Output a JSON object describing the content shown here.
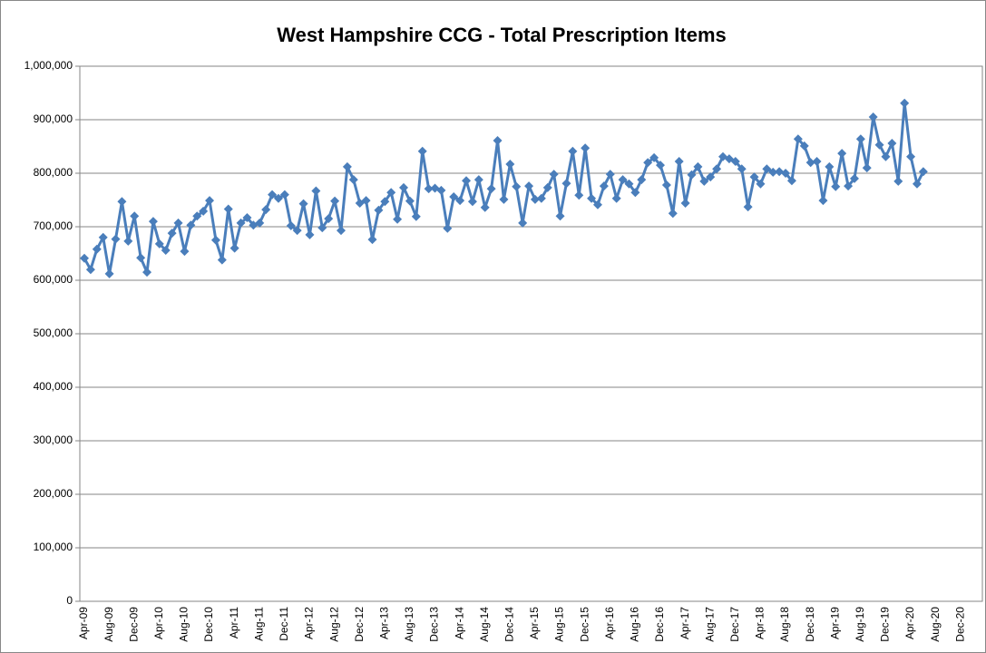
{
  "chart_data": {
    "type": "line",
    "title": "West Hampshire CCG - Total Prescription Items",
    "categories": [
      "Apr-09",
      null,
      null,
      null,
      "Aug-09",
      null,
      null,
      null,
      "Dec-09",
      null,
      null,
      null,
      "Apr-10",
      null,
      null,
      null,
      "Aug-10",
      null,
      null,
      null,
      "Dec-10",
      null,
      null,
      null,
      "Apr-11",
      null,
      null,
      null,
      "Aug-11",
      null,
      null,
      null,
      "Dec-11",
      null,
      null,
      null,
      "Apr-12",
      null,
      null,
      null,
      "Aug-12",
      null,
      null,
      null,
      "Dec-12",
      null,
      null,
      null,
      "Apr-13",
      null,
      null,
      null,
      "Aug-13",
      null,
      null,
      null,
      "Dec-13",
      null,
      null,
      null,
      "Apr-14",
      null,
      null,
      null,
      "Aug-14",
      null,
      null,
      null,
      "Dec-14",
      null,
      null,
      null,
      "Apr-15",
      null,
      null,
      null,
      "Aug-15",
      null,
      null,
      null,
      "Dec-15",
      null,
      null,
      null,
      "Apr-16",
      null,
      null,
      null,
      "Aug-16",
      null,
      null,
      null,
      "Dec-16",
      null,
      null,
      null,
      "Apr-17",
      null,
      null,
      null,
      "Aug-17",
      null,
      null,
      null,
      "Dec-17",
      null,
      null,
      null,
      "Apr-18",
      null,
      null,
      null,
      "Aug-18",
      null,
      null,
      null,
      "Dec-18",
      null,
      null,
      null,
      "Apr-19",
      null,
      null,
      null,
      "Aug-19",
      null,
      null,
      null,
      "Dec-19",
      null,
      null,
      null,
      "Apr-20",
      null,
      null,
      null,
      "Aug-20",
      null,
      null,
      null,
      "Dec-20",
      null,
      null,
      null
    ],
    "series": [
      {
        "name": "Total Prescription Items",
        "color": "#4a7ebb",
        "values": [
          641000,
          620000,
          658000,
          680000,
          612000,
          677000,
          747000,
          673000,
          720000,
          642000,
          615000,
          710000,
          668000,
          656000,
          688000,
          707000,
          654000,
          703000,
          720000,
          729000,
          749000,
          675000,
          638000,
          733000,
          660000,
          707000,
          717000,
          703000,
          707000,
          732000,
          760000,
          753000,
          760000,
          702000,
          693000,
          743000,
          685000,
          767000,
          698000,
          715000,
          748000,
          693000,
          812000,
          788000,
          744000,
          749000,
          676000,
          731000,
          747000,
          764000,
          714000,
          773000,
          748000,
          719000,
          841000,
          771000,
          772000,
          768000,
          697000,
          756000,
          749000,
          786000,
          747000,
          788000,
          736000,
          771000,
          861000,
          751000,
          817000,
          775000,
          707000,
          776000,
          751000,
          753000,
          773000,
          798000,
          720000,
          781000,
          841000,
          759000,
          847000,
          753000,
          741000,
          776000,
          798000,
          753000,
          788000,
          780000,
          764000,
          788000,
          820000,
          829000,
          815000,
          778000,
          725000,
          822000,
          744000,
          797000,
          812000,
          785000,
          793000,
          808000,
          831000,
          827000,
          822000,
          808000,
          737000,
          793000,
          780000,
          808000,
          802000,
          803000,
          800000,
          786000,
          864000,
          851000,
          820000,
          822000,
          749000,
          812000,
          775000,
          837000,
          776000,
          790000,
          864000,
          810000,
          905000,
          853000,
          831000,
          856000,
          785000,
          931000,
          831000,
          780000,
          803000,
          null,
          null,
          null,
          null,
          null,
          null,
          null,
          null,
          null
        ]
      }
    ],
    "ylim": [
      0,
      1000000
    ],
    "yticks": [
      0,
      {
        "value": 100000,
        "label": "100,000"
      },
      {
        "value": 200000,
        "label": "200,000"
      },
      {
        "value": 300000,
        "label": "300,000"
      },
      {
        "value": 400000,
        "label": "400,000"
      },
      {
        "value": 500000,
        "label": "500,000"
      },
      {
        "value": 600000,
        "label": "600,000"
      },
      {
        "value": 700000,
        "label": "700,000"
      },
      {
        "value": 800000,
        "label": "800,000"
      },
      {
        "value": 900000,
        "label": "900,000"
      },
      {
        "value": 1000000,
        "label": "1,000,000"
      }
    ],
    "grid": true
  }
}
